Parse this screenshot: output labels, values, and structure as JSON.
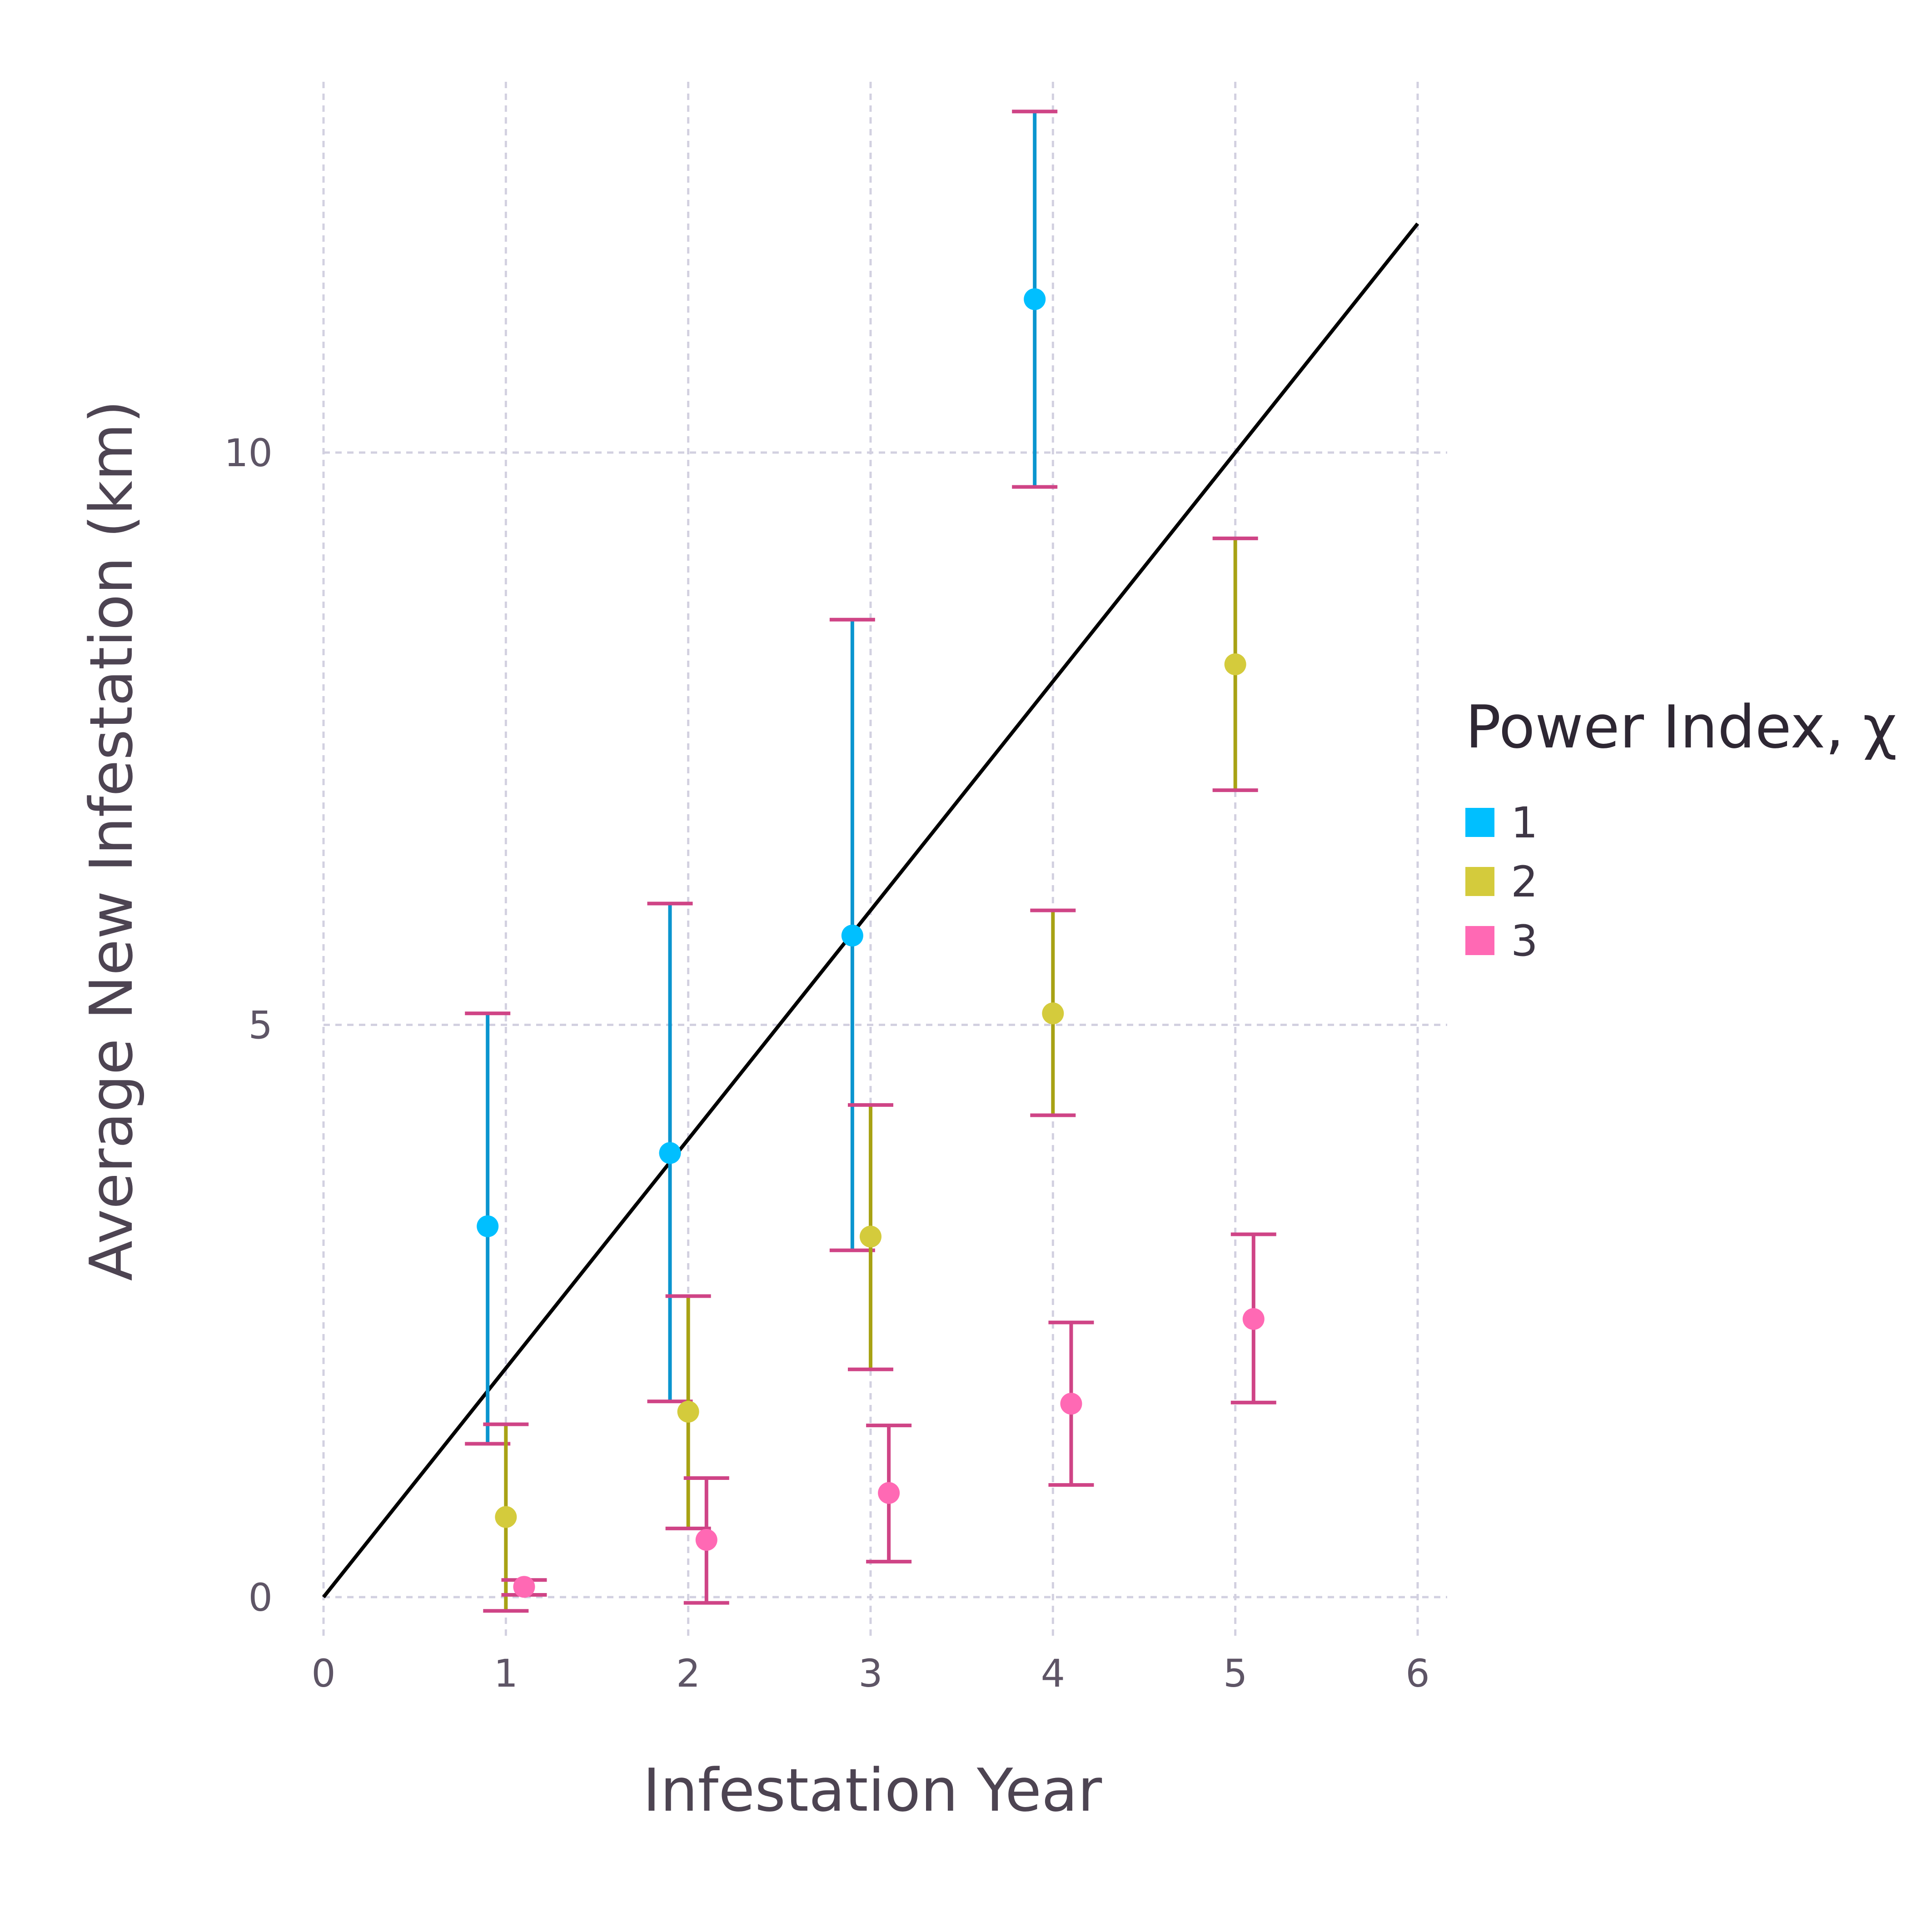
{
  "chart_data": {
    "type": "scatter",
    "xlabel": "Infestation Year",
    "ylabel": "Average New Infestation (km)",
    "xlim": [
      0,
      6
    ],
    "ylim": [
      -0.3,
      13.3
    ],
    "xticks": [
      "0",
      "1",
      "2",
      "3",
      "4",
      "5",
      "6"
    ],
    "yticks": [
      "0",
      "5",
      "10"
    ],
    "grid": true,
    "legend": {
      "title": "Power Index, χ",
      "placement": "right"
    },
    "reference_line": {
      "x": [
        0,
        6
      ],
      "y": [
        0,
        12
      ]
    },
    "series": [
      {
        "name": "1",
        "color": "#00bfff",
        "bar_color": "#0a95cf",
        "points": [
          {
            "x": 0.9,
            "y": 3.24,
            "lo": 1.34,
            "hi": 5.1
          },
          {
            "x": 1.9,
            "y": 3.88,
            "lo": 1.71,
            "hi": 6.06
          },
          {
            "x": 2.9,
            "y": 5.78,
            "lo": 3.03,
            "hi": 8.54
          },
          {
            "x": 3.9,
            "y": 11.34,
            "lo": 9.7,
            "hi": 12.98
          }
        ]
      },
      {
        "name": "2",
        "color": "#d4cb3c",
        "bar_color": "#a8a214",
        "points": [
          {
            "x": 1.0,
            "y": 0.7,
            "lo": -0.12,
            "hi": 1.51
          },
          {
            "x": 2.0,
            "y": 1.62,
            "lo": 0.6,
            "hi": 2.63
          },
          {
            "x": 3.0,
            "y": 3.15,
            "lo": 1.99,
            "hi": 4.3
          },
          {
            "x": 4.0,
            "y": 5.1,
            "lo": 4.21,
            "hi": 6.0
          },
          {
            "x": 5.0,
            "y": 8.15,
            "lo": 7.05,
            "hi": 9.25
          }
        ]
      },
      {
        "name": "3",
        "color": "#ff69b4",
        "bar_color": "#cf4486",
        "points": [
          {
            "x": 1.1,
            "y": 0.09,
            "lo": 0.02,
            "hi": 0.15
          },
          {
            "x": 2.1,
            "y": 0.5,
            "lo": -0.05,
            "hi": 1.04
          },
          {
            "x": 3.1,
            "y": 0.91,
            "lo": 0.31,
            "hi": 1.5
          },
          {
            "x": 4.1,
            "y": 1.69,
            "lo": 0.98,
            "hi": 2.4
          },
          {
            "x": 5.1,
            "y": 2.43,
            "lo": 1.7,
            "hi": 3.17
          }
        ]
      }
    ]
  }
}
